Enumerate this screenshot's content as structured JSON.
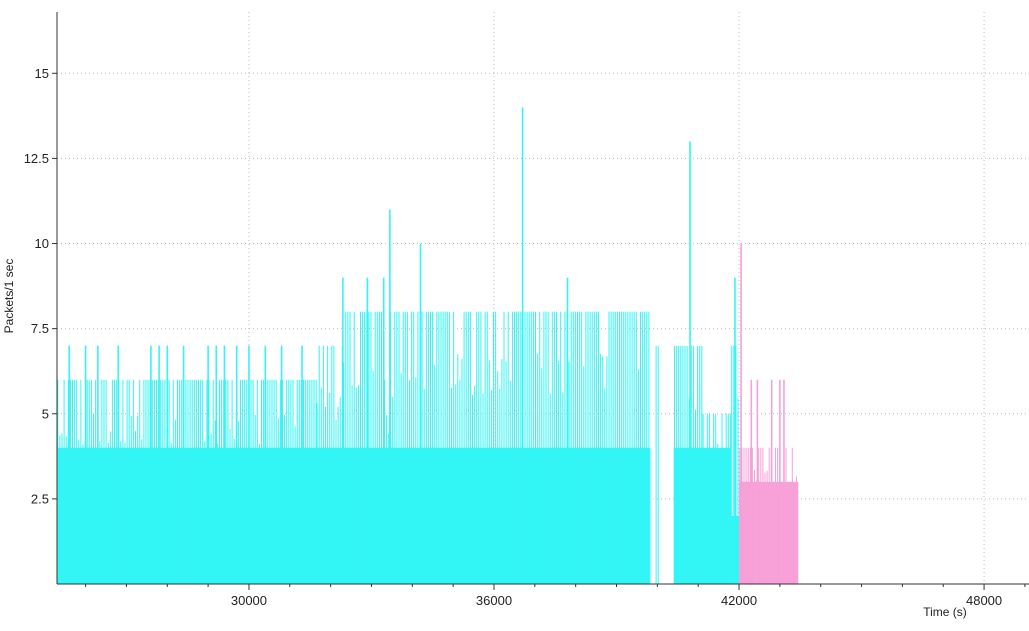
{
  "chart_data": {
    "type": "bar",
    "title": "",
    "xlabel": "Time (s)",
    "ylabel": "Packets/1 sec",
    "xlim": [
      25300,
      49100
    ],
    "ylim": [
      0,
      16.8
    ],
    "x_ticks": [
      {
        "value": 30000,
        "label": "30000"
      },
      {
        "value": 36000,
        "label": "36000"
      },
      {
        "value": 42000,
        "label": "42000"
      },
      {
        "value": 48000,
        "label": "48000"
      }
    ],
    "y_ticks": [
      {
        "value": 2.5,
        "label": "2.5"
      },
      {
        "value": 5,
        "label": "5"
      },
      {
        "value": 7.5,
        "label": "7.5"
      },
      {
        "value": 10,
        "label": "10"
      },
      {
        "value": 12.5,
        "label": "12.5"
      },
      {
        "value": 15,
        "label": "15"
      }
    ],
    "grid": true,
    "legend": "none",
    "series": [
      {
        "color": "#33f5f5",
        "x_start": 25300,
        "x_end": 42000,
        "bin_width": 1,
        "base_band": [
          {
            "x0": 25300,
            "x1": 39830,
            "value": 4
          },
          {
            "x0": 40400,
            "x1": 41800,
            "value": 4
          },
          {
            "x0": 41800,
            "x1": 42000,
            "value": 2
          }
        ],
        "segments": [
          {
            "x0": 25300,
            "x1": 31650,
            "level": 6
          },
          {
            "x0": 31650,
            "x1": 32300,
            "level": 7
          },
          {
            "x0": 32300,
            "x1": 33300,
            "level": 8
          },
          {
            "x0": 33300,
            "x1": 33450,
            "level": 6
          },
          {
            "x0": 33450,
            "x1": 39830,
            "level": 8
          },
          {
            "x0": 39830,
            "x1": 39950,
            "level": 0
          },
          {
            "x0": 39950,
            "x1": 40050,
            "level": 7
          },
          {
            "x0": 40050,
            "x1": 40400,
            "level": 0
          },
          {
            "x0": 40400,
            "x1": 41100,
            "level": 7
          },
          {
            "x0": 41100,
            "x1": 41800,
            "level": 5
          },
          {
            "x0": 41800,
            "x1": 42000,
            "level": 7
          }
        ],
        "peaks": [
          {
            "x": 25600,
            "value": 7
          },
          {
            "x": 26000,
            "value": 7
          },
          {
            "x": 26300,
            "value": 7
          },
          {
            "x": 26800,
            "value": 7
          },
          {
            "x": 27600,
            "value": 7
          },
          {
            "x": 27800,
            "value": 7
          },
          {
            "x": 28000,
            "value": 7
          },
          {
            "x": 28400,
            "value": 7
          },
          {
            "x": 29000,
            "value": 7
          },
          {
            "x": 29200,
            "value": 7
          },
          {
            "x": 29400,
            "value": 7
          },
          {
            "x": 29700,
            "value": 7
          },
          {
            "x": 30000,
            "value": 7
          },
          {
            "x": 30400,
            "value": 7
          },
          {
            "x": 30800,
            "value": 7
          },
          {
            "x": 31300,
            "value": 7
          },
          {
            "x": 32300,
            "value": 9
          },
          {
            "x": 32900,
            "value": 9
          },
          {
            "x": 33300,
            "value": 9
          },
          {
            "x": 33450,
            "value": 11
          },
          {
            "x": 34200,
            "value": 10
          },
          {
            "x": 36700,
            "value": 14
          },
          {
            "x": 37800,
            "value": 9
          },
          {
            "x": 40800,
            "value": 13
          },
          {
            "x": 41900,
            "value": 9
          }
        ]
      },
      {
        "color": "#f7a1d8",
        "x_start": 42000,
        "x_end": 43450,
        "bin_width": 1,
        "base_band": [
          {
            "x0": 42000,
            "x1": 43450,
            "value": 3
          }
        ],
        "segments": [
          {
            "x0": 42000,
            "x1": 43450,
            "level": 4
          }
        ],
        "peaks": [
          {
            "x": 42050,
            "value": 10
          },
          {
            "x": 42300,
            "value": 6
          },
          {
            "x": 42450,
            "value": 6
          },
          {
            "x": 42800,
            "value": 6
          },
          {
            "x": 43000,
            "value": 6
          },
          {
            "x": 43100,
            "value": 6
          }
        ]
      }
    ]
  }
}
